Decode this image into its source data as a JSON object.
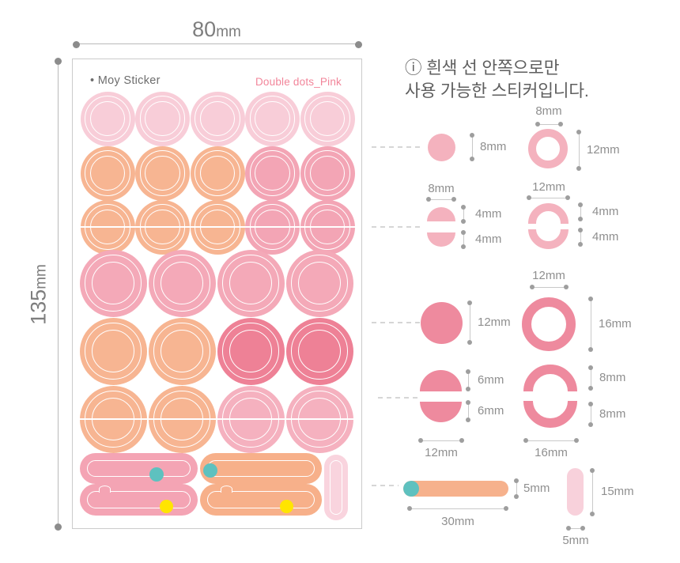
{
  "dims": {
    "width": {
      "value": "80",
      "unit": "mm"
    },
    "height": {
      "value": "135",
      "unit": "mm"
    }
  },
  "sheet": {
    "bullet": "•",
    "brand": "Moy Sticker",
    "product": "Double dots_Pink",
    "rows": [
      {
        "kind": "dot",
        "size": "small",
        "colors": [
          "light_pink",
          "light_pink",
          "light_pink",
          "light_pink",
          "light_pink"
        ]
      },
      {
        "kind": "dot",
        "size": "small",
        "colors": [
          "peach",
          "peach",
          "peach",
          "pink",
          "pink"
        ]
      },
      {
        "kind": "half",
        "size": "small",
        "colors": [
          "peach",
          "peach",
          "peach",
          "pink",
          "pink"
        ]
      },
      {
        "kind": "dot",
        "size": "large",
        "colors": [
          "pink4",
          "pink4",
          "pink4",
          "pink4"
        ]
      },
      {
        "kind": "dot",
        "size": "large",
        "colors": [
          "peach",
          "peach",
          "coral",
          "coral"
        ]
      },
      {
        "kind": "half",
        "size": "large",
        "colors": [
          "peach",
          "peach",
          "pink6",
          "pink6"
        ]
      }
    ],
    "bars": [
      {
        "color": "bar_pink",
        "dot_color": "teal",
        "notch": false
      },
      {
        "color": "bar_peach",
        "dot_color": "teal",
        "notch": false
      },
      {
        "color": "bar_pink",
        "dot_color": "yellow",
        "notch": true
      },
      {
        "color": "bar_peach",
        "dot_color": "yellow",
        "notch": true
      }
    ],
    "vertical_pill": {
      "color": "pill_light"
    }
  },
  "note": {
    "icon": "ⓘ",
    "line1": "흰색 선 안쪽으로만",
    "line2": "사용 가능한 스티커입니다."
  },
  "specs": {
    "dot_8": {
      "side": "8mm"
    },
    "ring_12": {
      "top": "8mm",
      "side": "12mm"
    },
    "half_8": {
      "top": "8mm",
      "seg1": "4mm",
      "seg2": "4mm"
    },
    "half_ring_12": {
      "top": "12mm",
      "seg1": "4mm",
      "seg2": "4mm"
    },
    "dot_12": {
      "side": "12mm"
    },
    "ring_16": {
      "top": "12mm",
      "side": "16mm"
    },
    "half_12": {
      "seg1": "6mm",
      "seg2": "6mm",
      "bottom": "12mm"
    },
    "half_ring_16": {
      "seg1": "8mm",
      "seg2": "8mm",
      "bottom": "16mm"
    },
    "bar_30": {
      "side": "5mm",
      "bottom": "30mm"
    },
    "pill_15": {
      "side": "15mm",
      "bottom": "5mm"
    }
  },
  "colors": {
    "light_pink": "#f8cdd8",
    "peach": "#f7b592",
    "pink": "#f3a5b5",
    "pink4": "#f4a9b8",
    "pink6": "#f5b1bf",
    "coral": "#ee8196",
    "bar_pink": "#f4a4b4",
    "bar_peach": "#f7b08a",
    "pill_light": "#f9d4de",
    "teal": "#5ec1bf",
    "yellow": "#ffe500",
    "spec_pink": "#f4b2be",
    "spec_dark": "#ee8a9e",
    "spec_peach": "#f6b18c",
    "spec_pill": "#f8d1db",
    "brand_pink": "#f2859a"
  }
}
